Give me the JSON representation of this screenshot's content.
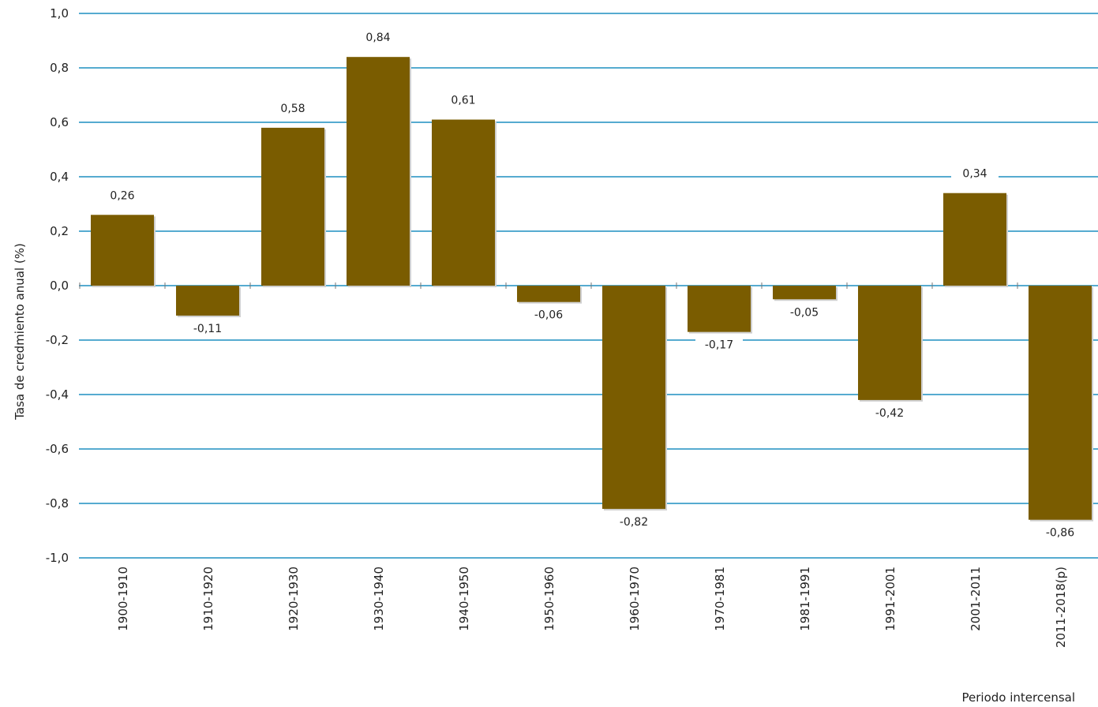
{
  "chart_data": {
    "type": "bar",
    "categories": [
      "1900-1910",
      "1910-1920",
      "1920-1930",
      "1930-1940",
      "1940-1950",
      "1950-1960",
      "1960-1970",
      "1970-1981",
      "1981-1991",
      "1991-2001",
      "2001-2011",
      "2011-2018(p)"
    ],
    "values": [
      0.26,
      -0.11,
      0.58,
      0.84,
      0.61,
      -0.06,
      -0.82,
      -0.17,
      -0.05,
      -0.42,
      0.34,
      -0.86
    ],
    "value_labels": [
      "0,26",
      "-0,11",
      "0,58",
      "0,84",
      "0,61",
      "-0,06",
      "-0,82",
      "-0,17",
      "-0,05",
      "-0,42",
      "0,34",
      "-0,86"
    ],
    "yticks": [
      1.0,
      0.8,
      0.6,
      0.4,
      0.2,
      0.0,
      -0.2,
      -0.4,
      -0.6,
      -0.8,
      -1.0
    ],
    "ytick_labels": [
      "1,0",
      "0,8",
      "0,6",
      "0,4",
      "0,2",
      "0,0",
      "-0,2",
      "-0,4",
      "-0,6",
      "-0,8",
      "-1,0"
    ],
    "ylim": [
      -1.0,
      1.0
    ],
    "ylabel": "Tasa de credmiento anual (%)",
    "xlabel": "Periodo intercensal",
    "grid": true,
    "bar_color": "#7a5c00",
    "grid_color": "#1f8fc0"
  }
}
